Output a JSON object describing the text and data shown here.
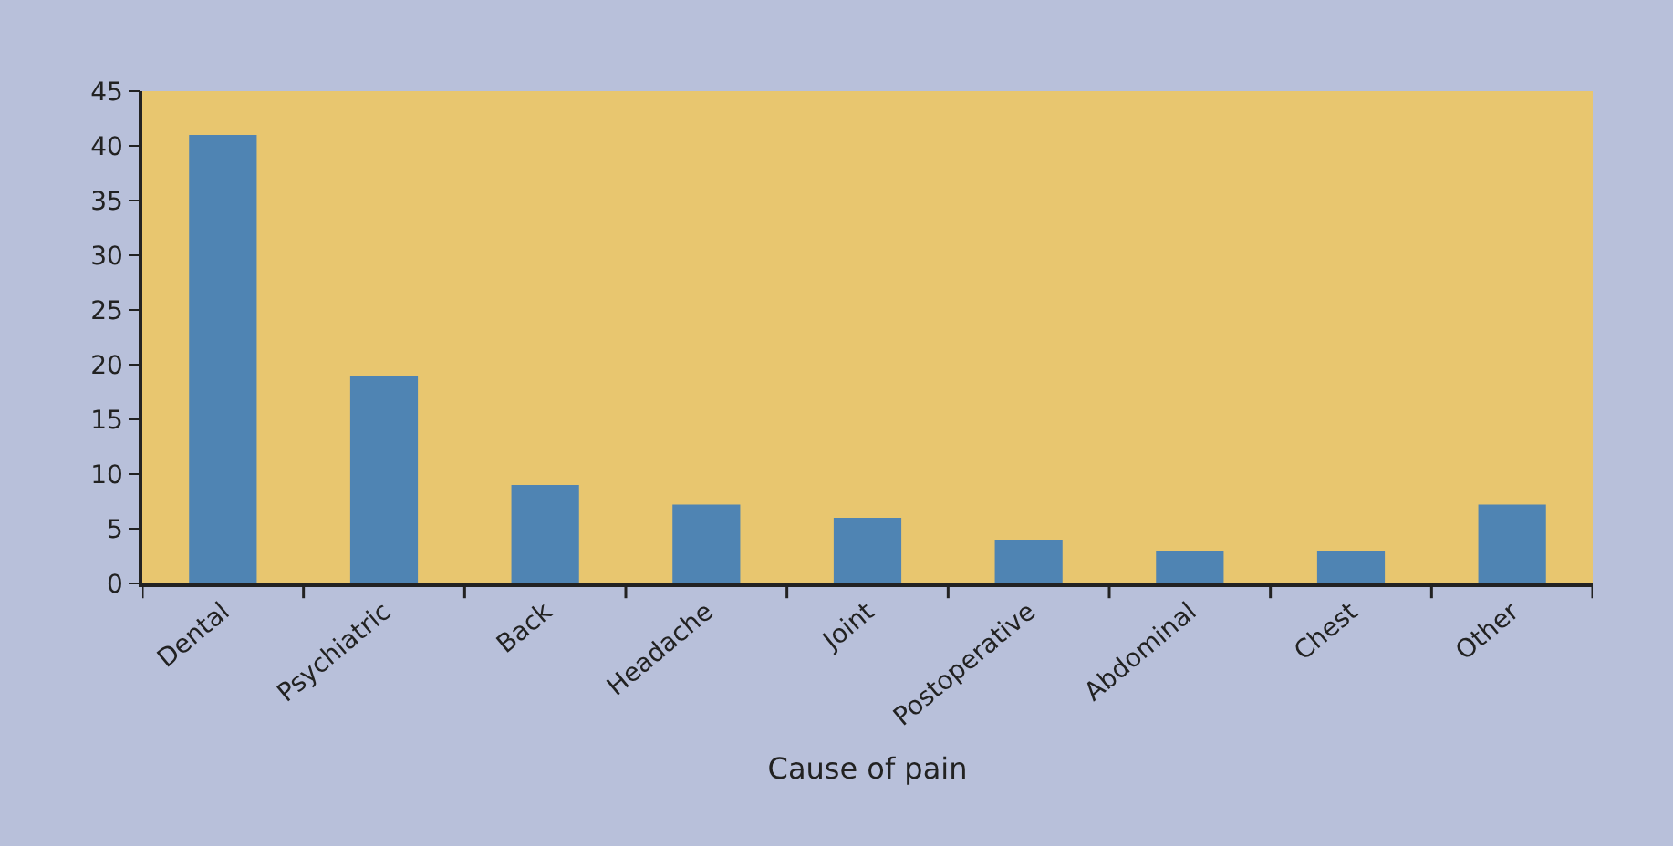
{
  "chart_data": {
    "type": "bar",
    "xlabel": "Cause of pain",
    "categories": [
      "Dental",
      "Psychiatric",
      "Back",
      "Headache",
      "Joint",
      "Postoperative",
      "Abdominal",
      "Chest",
      "Other"
    ],
    "values": [
      41,
      19,
      9,
      7.2,
      6,
      4,
      3,
      3,
      7.2
    ],
    "color": "#4f84b3",
    "ylim": [
      0,
      45
    ],
    "yticks": [
      0,
      5,
      10,
      15,
      20,
      25,
      30,
      35,
      40,
      45
    ]
  }
}
